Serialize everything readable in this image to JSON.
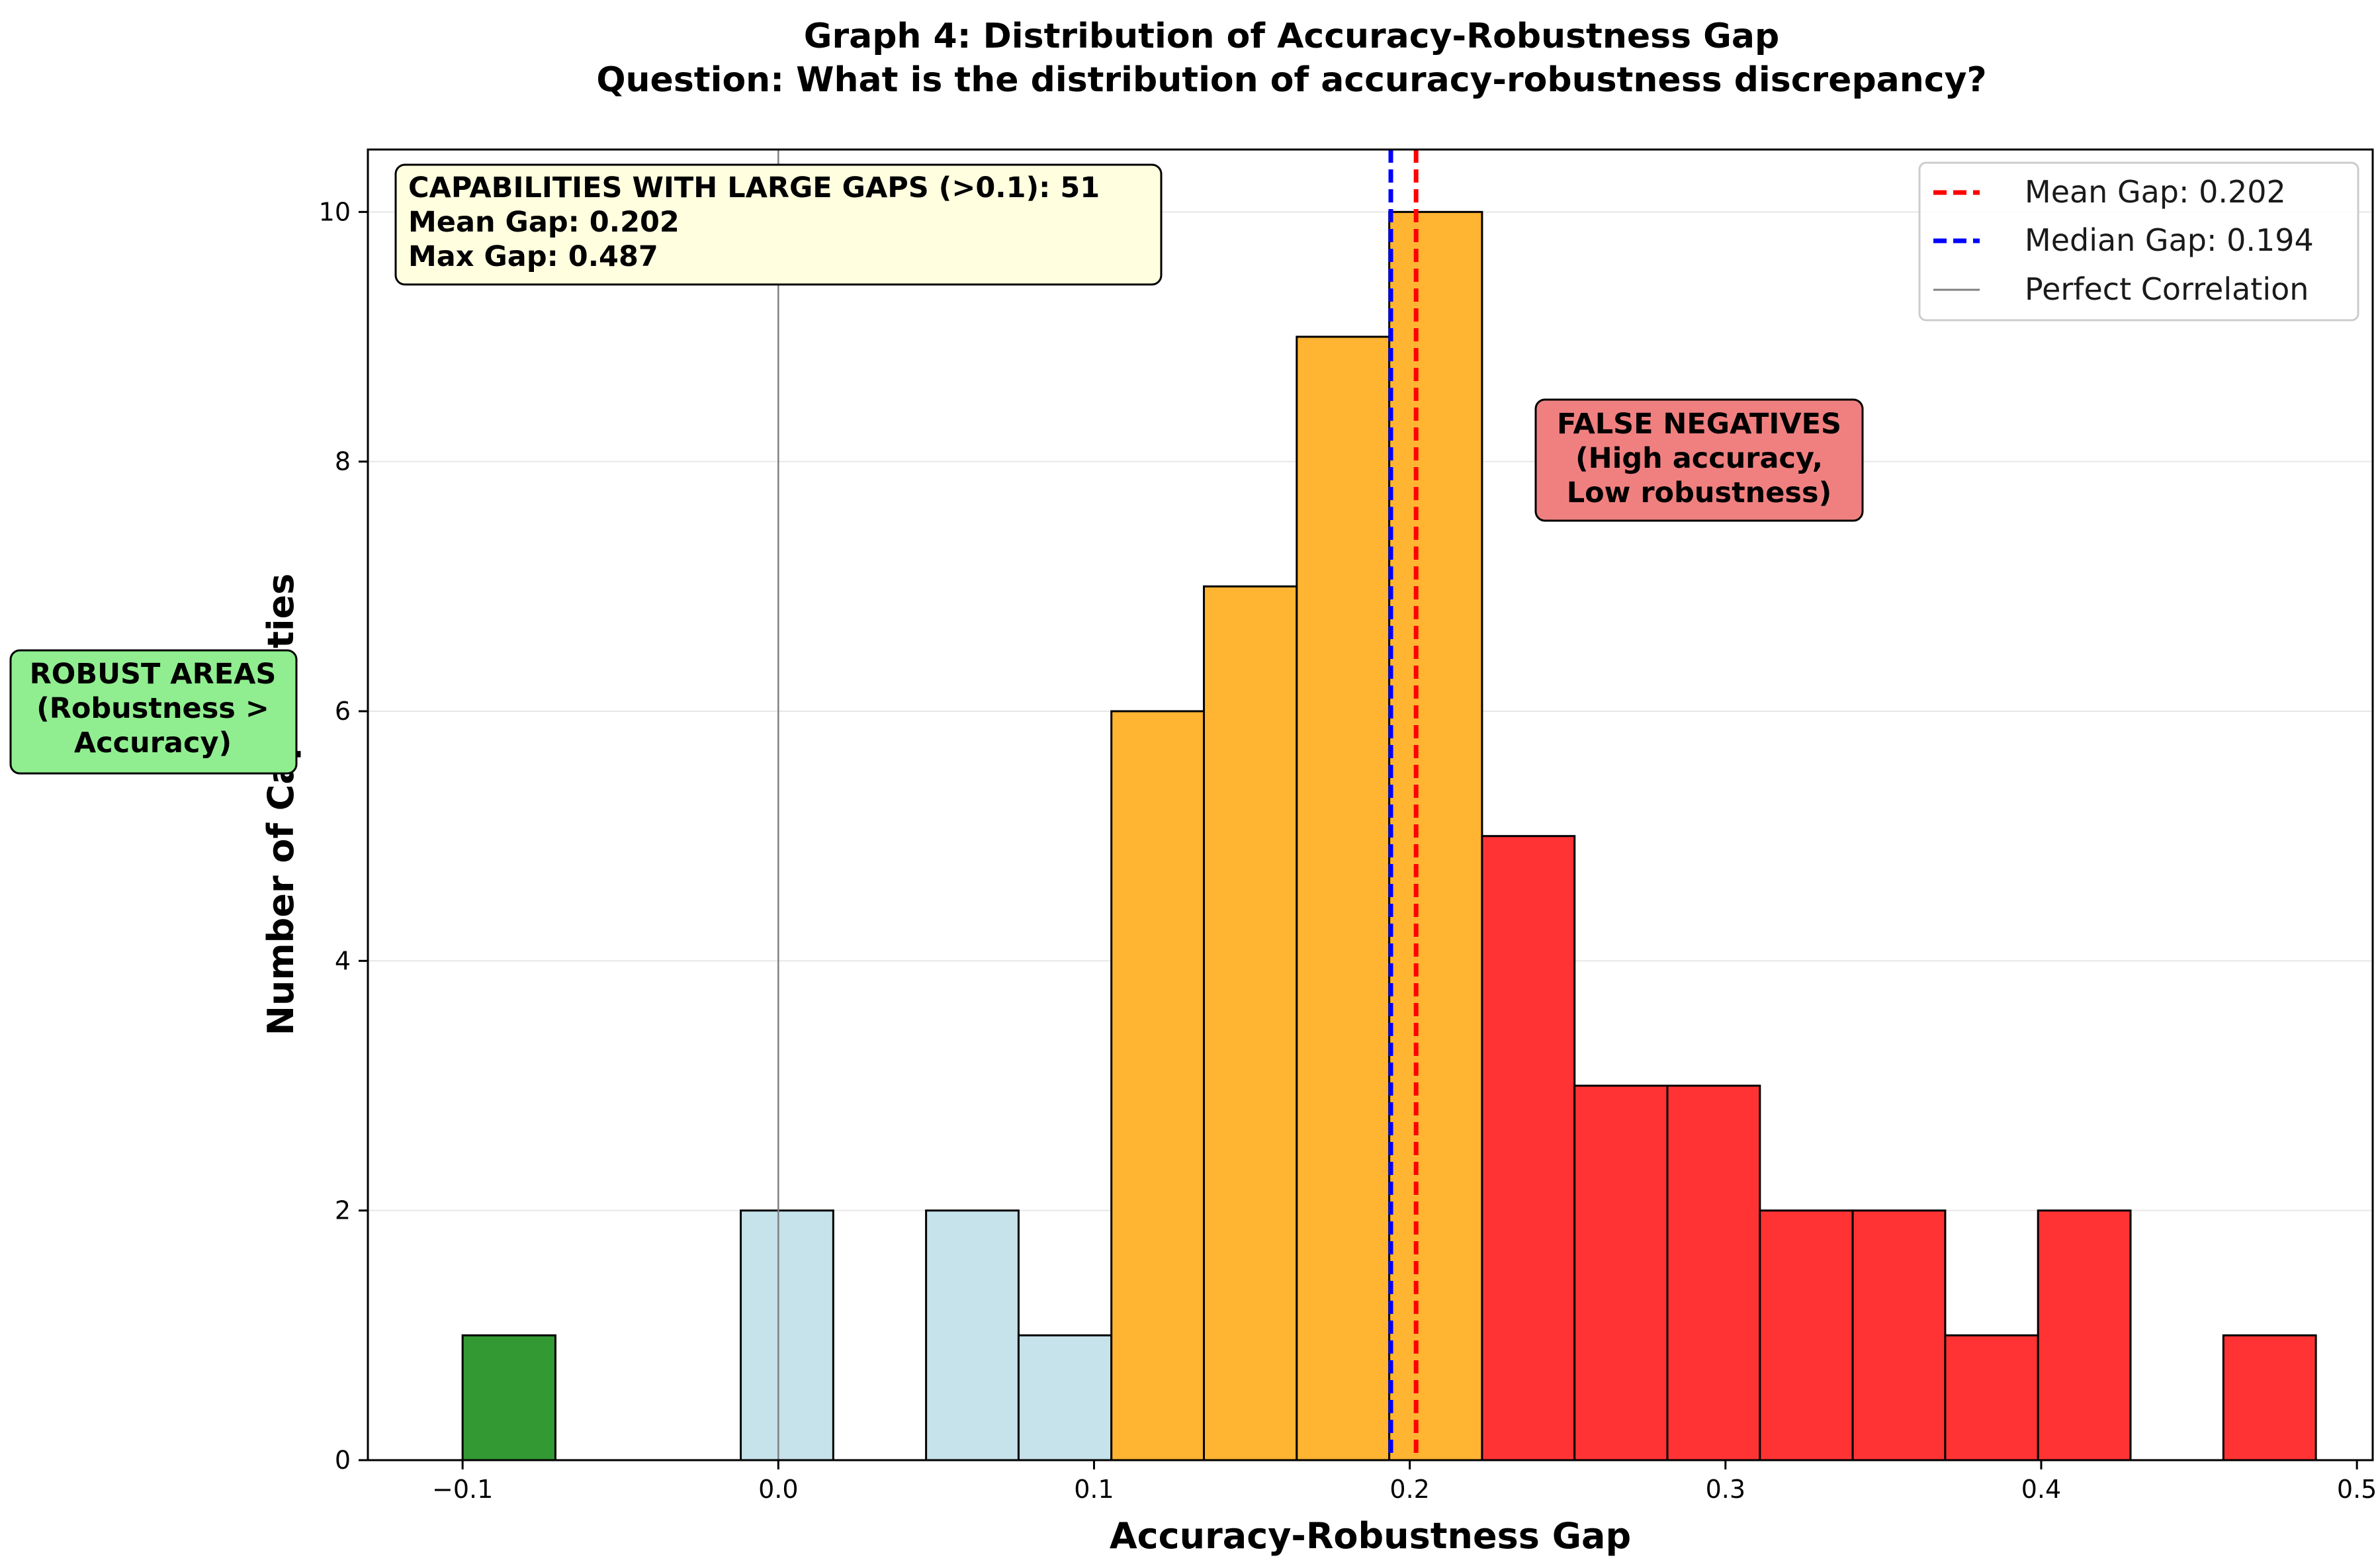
{
  "chart_data": {
    "type": "bar",
    "title": "Graph 4: Distribution of Accuracy-Robustness Gap",
    "subtitle": "Question: What is the distribution of accuracy-robustness discrepancy?",
    "xlabel": "Accuracy-Robustness Gap",
    "ylabel": "Number of Capabilities",
    "xlim": [
      -0.13,
      0.505
    ],
    "ylim": [
      0,
      10.5
    ],
    "x_ticks": [
      -0.1,
      0.0,
      0.1,
      0.2,
      0.3,
      0.4,
      0.5
    ],
    "x_tick_labels": [
      "−0.1",
      "0.0",
      "0.1",
      "0.2",
      "0.3",
      "0.4",
      "0.5"
    ],
    "y_ticks": [
      0,
      2,
      4,
      6,
      8,
      10
    ],
    "y_tick_labels": [
      "0",
      "2",
      "4",
      "6",
      "8",
      "10"
    ],
    "grid": "y",
    "bins": [
      {
        "x0": -0.1,
        "x1": -0.0706,
        "count": 1,
        "color": "#339933"
      },
      {
        "x0": -0.0706,
        "x1": -0.0413,
        "count": 0,
        "color": "#c6e2ea"
      },
      {
        "x0": -0.0413,
        "x1": -0.0119,
        "count": 0,
        "color": "#c6e2ea"
      },
      {
        "x0": -0.0119,
        "x1": 0.0174,
        "count": 2,
        "color": "#c6e2ea"
      },
      {
        "x0": 0.0174,
        "x1": 0.0468,
        "count": 0,
        "color": "#c6e2ea"
      },
      {
        "x0": 0.0468,
        "x1": 0.0761,
        "count": 2,
        "color": "#c6e2ea"
      },
      {
        "x0": 0.0761,
        "x1": 0.1055,
        "count": 1,
        "color": "#c6e2ea"
      },
      {
        "x0": 0.1055,
        "x1": 0.1348,
        "count": 6,
        "color": "#ffb432"
      },
      {
        "x0": 0.1348,
        "x1": 0.1642,
        "count": 7,
        "color": "#ffb432"
      },
      {
        "x0": 0.1642,
        "x1": 0.1935,
        "count": 9,
        "color": "#ffb432"
      },
      {
        "x0": 0.1935,
        "x1": 0.2229,
        "count": 10,
        "color": "#ffb432"
      },
      {
        "x0": 0.2229,
        "x1": 0.2522,
        "count": 5,
        "color": "#ff3333"
      },
      {
        "x0": 0.2522,
        "x1": 0.2816,
        "count": 3,
        "color": "#ff3333"
      },
      {
        "x0": 0.2816,
        "x1": 0.3109,
        "count": 3,
        "color": "#ff3333"
      },
      {
        "x0": 0.3109,
        "x1": 0.3403,
        "count": 2,
        "color": "#ff3333"
      },
      {
        "x0": 0.3403,
        "x1": 0.3696,
        "count": 2,
        "color": "#ff3333"
      },
      {
        "x0": 0.3696,
        "x1": 0.399,
        "count": 1,
        "color": "#ff3333"
      },
      {
        "x0": 0.399,
        "x1": 0.4283,
        "count": 2,
        "color": "#ff3333"
      },
      {
        "x0": 0.4283,
        "x1": 0.4577,
        "count": 0,
        "color": "#ff3333"
      },
      {
        "x0": 0.4577,
        "x1": 0.487,
        "count": 1,
        "color": "#ff3333"
      }
    ],
    "reference_lines": [
      {
        "name": "Mean Gap: 0.202",
        "x": 0.202,
        "color": "#ff0000",
        "style": "dashed"
      },
      {
        "name": "Median Gap: 0.194",
        "x": 0.194,
        "color": "#0000ff",
        "style": "dashed"
      },
      {
        "name": "Perfect Correlation",
        "x": 0.0,
        "color": "#808080",
        "style": "solid"
      }
    ],
    "legend_placement": "top-right",
    "stats_box": {
      "lines": [
        "CAPABILITIES WITH LARGE GAPS (>0.1): 51",
        "Mean Gap: 0.202",
        "Max Gap: 0.487"
      ],
      "background": "#ffffe0",
      "placement": "top-left"
    },
    "annotations": [
      {
        "lines": [
          "FALSE NEGATIVES",
          "(High accuracy,",
          "Low robustness)"
        ],
        "background": "#f08080"
      },
      {
        "lines": [
          "ROBUST AREAS",
          "(Robustness >",
          "Accuracy)"
        ],
        "background": "#90ee90"
      }
    ]
  }
}
